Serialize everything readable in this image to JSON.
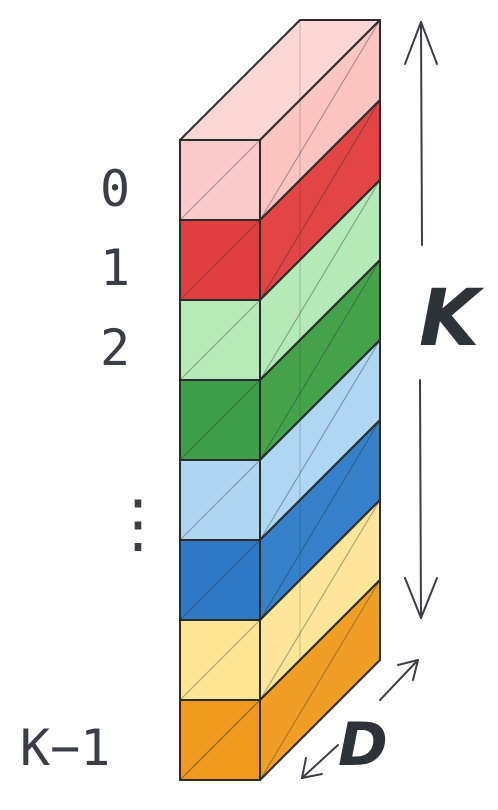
{
  "labels": {
    "rows": [
      "0",
      "1",
      "2",
      "⋮",
      "K−1"
    ],
    "height_symbol": "K",
    "depth_symbol": "D"
  },
  "blocks": [
    {
      "name": "block-0",
      "front": "#fbc9c9",
      "top": "#fdd6d6",
      "side": "#fbc4c0"
    },
    {
      "name": "block-1",
      "front": "#e03f3f",
      "top": "#e85050",
      "side": "#e04444"
    },
    {
      "name": "block-2",
      "front": "#b6eab8",
      "top": "#c2efc3",
      "side": "#b4eab7"
    },
    {
      "name": "block-3",
      "front": "#3f9e49",
      "top": "#4aa852",
      "side": "#45a34c"
    },
    {
      "name": "block-4",
      "front": "#aed6f3",
      "top": "#bcdef6",
      "side": "#afd6f3"
    },
    {
      "name": "block-5",
      "front": "#2f78c4",
      "top": "#3a82cb",
      "side": "#3480c9"
    },
    {
      "name": "block-6",
      "front": "#fde594",
      "top": "#feeaa6",
      "side": "#fde59a"
    },
    {
      "name": "block-7",
      "front": "#ef9a1e",
      "top": "#f2a33a",
      "side": "#f09d25"
    }
  ],
  "colors": {
    "outline": "#2b2b2b",
    "label_text": "#3a3f47",
    "arrow": "#3a3f47"
  }
}
